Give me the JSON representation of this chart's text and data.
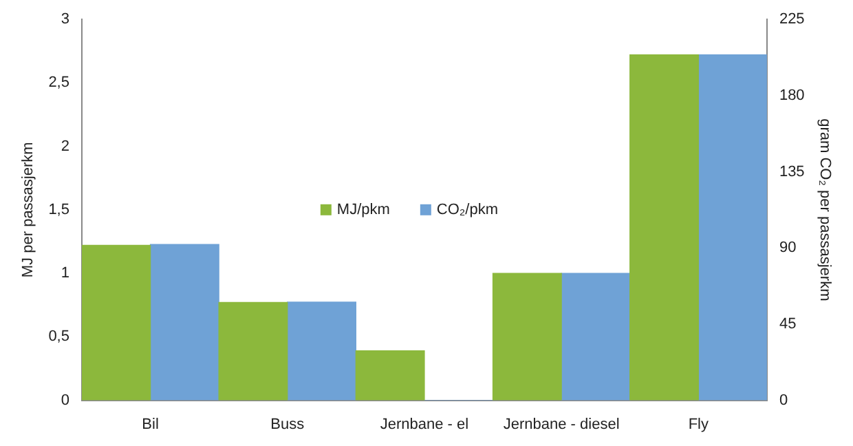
{
  "chart_data": {
    "type": "bar",
    "ylabel": "MJ per passasjerkm",
    "y2label": "gram CO₂ per passasjerkm",
    "categories": [
      "Bil",
      "Buss",
      "Jernbane - el",
      "Jernbane - diesel",
      "Fly"
    ],
    "series": [
      {
        "name": "MJ/pkm",
        "color": "#8cb83c",
        "values": [
          1.22,
          0.77,
          0.39,
          1.0,
          2.72
        ]
      },
      {
        "name": "CO₂/pkm",
        "color": "#6fa2d6",
        "axis": "y2",
        "values": [
          92,
          58,
          0,
          75,
          204
        ]
      }
    ],
    "ylim": [
      0,
      3
    ],
    "yticks": [
      0,
      {
        "value": 0.5,
        "label": "0,5"
      },
      1,
      {
        "value": 1.5,
        "label": "1,5"
      },
      2,
      {
        "value": 2.5,
        "label": "2,5"
      },
      3
    ],
    "y2lim": [
      0,
      225
    ],
    "y2ticks": [
      0,
      45,
      90,
      135,
      180,
      225
    ],
    "grid": false,
    "legend": "center"
  }
}
